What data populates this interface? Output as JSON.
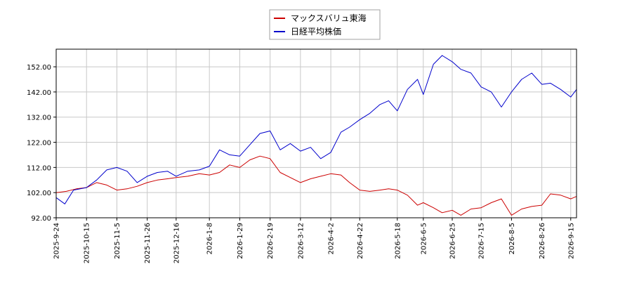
{
  "chart_data": {
    "type": "line",
    "title": "",
    "xlabel": "",
    "ylabel": "",
    "legend": {
      "placement": "top-center"
    },
    "grid": true,
    "ylim": [
      92.0,
      159.0
    ],
    "y_ticks": [
      "92.00",
      "102.00",
      "112.00",
      "122.00",
      "132.00",
      "142.00",
      "152.00"
    ],
    "x_ticks": [
      "2025-9-24",
      "2025-10-15",
      "2025-11-5",
      "2025-11-26",
      "2025-12-16",
      "2026-1-8",
      "2026-1-29",
      "2026-2-19",
      "2026-3-12",
      "2026-4-2",
      "2026-4-22",
      "2026-5-18",
      "2026-6-5",
      "2026-6-25",
      "2026-7-15",
      "2026-8-5",
      "2026-8-26",
      "2026-9-15"
    ],
    "xlim": [
      "2025-09-24",
      "2026-09-19"
    ],
    "series": [
      {
        "name": "マックスバリュ東海",
        "color": "#cc0000",
        "points": [
          [
            "2025-09-24",
            102.0
          ],
          [
            "2025-10-01",
            102.5
          ],
          [
            "2025-10-08",
            103.5
          ],
          [
            "2025-10-15",
            104.0
          ],
          [
            "2025-10-22",
            106.0
          ],
          [
            "2025-10-29",
            105.0
          ],
          [
            "2025-11-05",
            103.0
          ],
          [
            "2025-11-12",
            103.5
          ],
          [
            "2025-11-19",
            104.5
          ],
          [
            "2025-11-26",
            106.0
          ],
          [
            "2025-12-03",
            107.0
          ],
          [
            "2025-12-10",
            107.5
          ],
          [
            "2025-12-16",
            108.0
          ],
          [
            "2025-12-24",
            108.5
          ],
          [
            "2026-01-01",
            109.5
          ],
          [
            "2026-01-08",
            109.0
          ],
          [
            "2026-01-15",
            110.0
          ],
          [
            "2026-01-22",
            113.0
          ],
          [
            "2026-01-29",
            112.0
          ],
          [
            "2026-02-05",
            115.0
          ],
          [
            "2026-02-12",
            116.5
          ],
          [
            "2026-02-19",
            115.5
          ],
          [
            "2026-02-26",
            110.0
          ],
          [
            "2026-03-05",
            108.0
          ],
          [
            "2026-03-12",
            106.0
          ],
          [
            "2026-03-19",
            107.5
          ],
          [
            "2026-03-26",
            108.5
          ],
          [
            "2026-04-02",
            109.5
          ],
          [
            "2026-04-09",
            109.0
          ],
          [
            "2026-04-15",
            106.0
          ],
          [
            "2026-04-22",
            103.0
          ],
          [
            "2026-04-29",
            102.5
          ],
          [
            "2026-05-06",
            103.0
          ],
          [
            "2026-05-12",
            103.5
          ],
          [
            "2026-05-18",
            103.0
          ],
          [
            "2026-05-25",
            101.0
          ],
          [
            "2026-06-01",
            97.0
          ],
          [
            "2026-06-05",
            98.0
          ],
          [
            "2026-06-12",
            96.0
          ],
          [
            "2026-06-18",
            94.0
          ],
          [
            "2026-06-25",
            95.0
          ],
          [
            "2026-07-01",
            93.0
          ],
          [
            "2026-07-08",
            95.5
          ],
          [
            "2026-07-15",
            96.0
          ],
          [
            "2026-07-22",
            98.0
          ],
          [
            "2026-07-29",
            99.5
          ],
          [
            "2026-08-05",
            93.0
          ],
          [
            "2026-08-12",
            95.5
          ],
          [
            "2026-08-19",
            96.5
          ],
          [
            "2026-08-26",
            97.0
          ],
          [
            "2026-09-01",
            101.5
          ],
          [
            "2026-09-08",
            101.0
          ],
          [
            "2026-09-15",
            99.5
          ],
          [
            "2026-09-19",
            100.5
          ]
        ]
      },
      {
        "name": "日経平均株価",
        "color": "#0000cc",
        "points": [
          [
            "2025-09-24",
            100.0
          ],
          [
            "2025-09-30",
            97.5
          ],
          [
            "2025-10-06",
            103.0
          ],
          [
            "2025-10-15",
            104.0
          ],
          [
            "2025-10-22",
            107.0
          ],
          [
            "2025-10-29",
            111.0
          ],
          [
            "2025-11-05",
            112.0
          ],
          [
            "2025-11-12",
            110.5
          ],
          [
            "2025-11-19",
            106.0
          ],
          [
            "2025-11-26",
            108.5
          ],
          [
            "2025-12-03",
            110.0
          ],
          [
            "2025-12-10",
            110.5
          ],
          [
            "2025-12-16",
            108.5
          ],
          [
            "2025-12-24",
            110.5
          ],
          [
            "2026-01-01",
            111.0
          ],
          [
            "2026-01-08",
            112.5
          ],
          [
            "2026-01-15",
            119.0
          ],
          [
            "2026-01-22",
            117.0
          ],
          [
            "2026-01-29",
            116.5
          ],
          [
            "2026-02-05",
            121.0
          ],
          [
            "2026-02-12",
            125.5
          ],
          [
            "2026-02-19",
            126.5
          ],
          [
            "2026-02-26",
            119.0
          ],
          [
            "2026-03-05",
            121.5
          ],
          [
            "2026-03-12",
            118.5
          ],
          [
            "2026-03-19",
            120.0
          ],
          [
            "2026-03-26",
            115.5
          ],
          [
            "2026-04-02",
            118.0
          ],
          [
            "2026-04-09",
            126.0
          ],
          [
            "2026-04-15",
            128.0
          ],
          [
            "2026-04-22",
            131.0
          ],
          [
            "2026-04-29",
            133.5
          ],
          [
            "2026-05-06",
            137.0
          ],
          [
            "2026-05-12",
            138.5
          ],
          [
            "2026-05-18",
            134.5
          ],
          [
            "2026-05-25",
            143.0
          ],
          [
            "2026-06-01",
            147.0
          ],
          [
            "2026-06-05",
            141.0
          ],
          [
            "2026-06-12",
            153.0
          ],
          [
            "2026-06-18",
            156.5
          ],
          [
            "2026-06-25",
            154.0
          ],
          [
            "2026-07-01",
            151.0
          ],
          [
            "2026-07-08",
            149.5
          ],
          [
            "2026-07-15",
            144.0
          ],
          [
            "2026-07-22",
            142.0
          ],
          [
            "2026-07-29",
            136.0
          ],
          [
            "2026-08-05",
            142.0
          ],
          [
            "2026-08-12",
            147.0
          ],
          [
            "2026-08-19",
            149.5
          ],
          [
            "2026-08-26",
            145.0
          ],
          [
            "2026-09-01",
            145.5
          ],
          [
            "2026-09-08",
            143.0
          ],
          [
            "2026-09-15",
            140.0
          ],
          [
            "2026-09-19",
            143.0
          ]
        ]
      }
    ]
  }
}
